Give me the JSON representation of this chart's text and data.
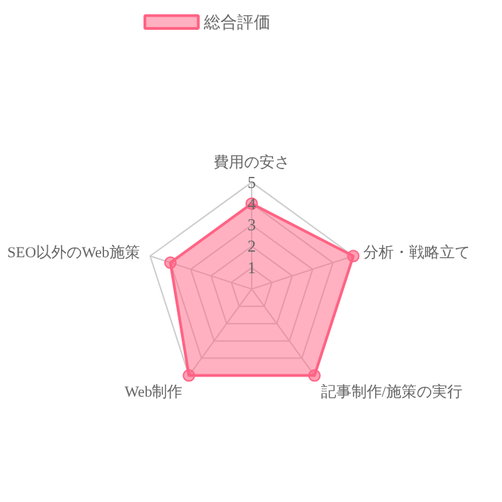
{
  "chart_data": {
    "type": "radar",
    "categories": [
      "費用の安さ",
      "分析・戦略立て",
      "記事制作/施策の実行",
      "Web制作",
      "SEO以外のWeb施策"
    ],
    "series": [
      {
        "name": "総合評価",
        "color": "#ff6384",
        "values": [
          4,
          5,
          5,
          5,
          4
        ]
      }
    ],
    "ylim": [
      0,
      5
    ],
    "yticks": [
      1,
      2,
      3,
      4,
      5
    ],
    "grid": true,
    "legend": "top",
    "marker": "circle"
  }
}
